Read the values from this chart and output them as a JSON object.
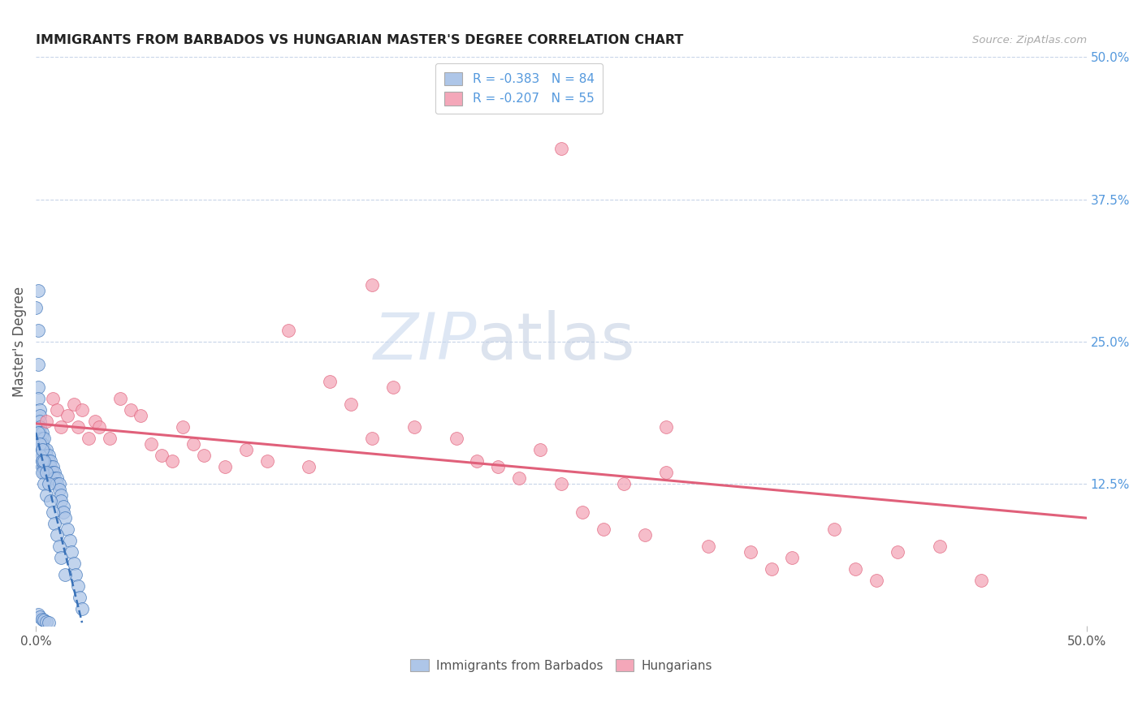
{
  "title": "IMMIGRANTS FROM BARBADOS VS HUNGARIAN MASTER'S DEGREE CORRELATION CHART",
  "source": "Source: ZipAtlas.com",
  "ylabel": "Master's Degree",
  "xlim": [
    0.0,
    0.5
  ],
  "ylim": [
    0.0,
    0.5
  ],
  "legend_label1": "Immigrants from Barbados",
  "legend_label2": "Hungarians",
  "R1": -0.383,
  "N1": 84,
  "R2": -0.207,
  "N2": 55,
  "color_blue": "#aec6e8",
  "color_pink": "#f4a7b9",
  "color_blue_dark": "#3a72b8",
  "color_pink_dark": "#e0607a",
  "watermark_zip": "ZIP",
  "watermark_atlas": "atlas",
  "background_color": "#ffffff",
  "grid_color": "#c8d4e8",
  "title_color": "#222222",
  "axis_label_color": "#555555",
  "right_tick_color": "#5599dd",
  "blue_points_x": [
    0.0,
    0.001,
    0.001,
    0.001,
    0.001,
    0.001,
    0.002,
    0.002,
    0.002,
    0.002,
    0.002,
    0.002,
    0.002,
    0.003,
    0.003,
    0.003,
    0.003,
    0.003,
    0.003,
    0.003,
    0.003,
    0.004,
    0.004,
    0.004,
    0.004,
    0.004,
    0.004,
    0.005,
    0.005,
    0.005,
    0.005,
    0.006,
    0.006,
    0.006,
    0.006,
    0.007,
    0.007,
    0.007,
    0.008,
    0.008,
    0.008,
    0.009,
    0.009,
    0.01,
    0.01,
    0.011,
    0.011,
    0.012,
    0.012,
    0.013,
    0.013,
    0.014,
    0.015,
    0.016,
    0.017,
    0.018,
    0.019,
    0.02,
    0.021,
    0.022,
    0.001,
    0.002,
    0.002,
    0.003,
    0.003,
    0.003,
    0.004,
    0.004,
    0.005,
    0.005,
    0.006,
    0.007,
    0.008,
    0.009,
    0.01,
    0.011,
    0.012,
    0.014,
    0.001,
    0.002,
    0.003,
    0.004,
    0.005,
    0.006
  ],
  "blue_points_y": [
    0.28,
    0.295,
    0.26,
    0.23,
    0.21,
    0.2,
    0.19,
    0.185,
    0.18,
    0.175,
    0.17,
    0.165,
    0.16,
    0.17,
    0.165,
    0.16,
    0.155,
    0.15,
    0.145,
    0.14,
    0.155,
    0.165,
    0.155,
    0.15,
    0.145,
    0.14,
    0.135,
    0.155,
    0.15,
    0.145,
    0.14,
    0.15,
    0.145,
    0.14,
    0.135,
    0.145,
    0.14,
    0.135,
    0.14,
    0.135,
    0.13,
    0.135,
    0.13,
    0.13,
    0.125,
    0.125,
    0.12,
    0.115,
    0.11,
    0.105,
    0.1,
    0.095,
    0.085,
    0.075,
    0.065,
    0.055,
    0.045,
    0.035,
    0.025,
    0.015,
    0.17,
    0.16,
    0.15,
    0.155,
    0.145,
    0.135,
    0.145,
    0.125,
    0.135,
    0.115,
    0.125,
    0.11,
    0.1,
    0.09,
    0.08,
    0.07,
    0.06,
    0.045,
    0.01,
    0.008,
    0.006,
    0.005,
    0.004,
    0.003
  ],
  "pink_points_x": [
    0.005,
    0.008,
    0.01,
    0.012,
    0.015,
    0.018,
    0.02,
    0.022,
    0.025,
    0.028,
    0.03,
    0.035,
    0.04,
    0.045,
    0.05,
    0.055,
    0.06,
    0.065,
    0.07,
    0.075,
    0.08,
    0.09,
    0.1,
    0.11,
    0.12,
    0.13,
    0.14,
    0.15,
    0.16,
    0.17,
    0.18,
    0.2,
    0.21,
    0.22,
    0.23,
    0.24,
    0.25,
    0.26,
    0.27,
    0.28,
    0.29,
    0.3,
    0.32,
    0.34,
    0.35,
    0.36,
    0.38,
    0.39,
    0.4,
    0.41,
    0.16,
    0.25,
    0.3,
    0.43,
    0.45
  ],
  "pink_points_y": [
    0.18,
    0.2,
    0.19,
    0.175,
    0.185,
    0.195,
    0.175,
    0.19,
    0.165,
    0.18,
    0.175,
    0.165,
    0.2,
    0.19,
    0.185,
    0.16,
    0.15,
    0.145,
    0.175,
    0.16,
    0.15,
    0.14,
    0.155,
    0.145,
    0.26,
    0.14,
    0.215,
    0.195,
    0.165,
    0.21,
    0.175,
    0.165,
    0.145,
    0.14,
    0.13,
    0.155,
    0.125,
    0.1,
    0.085,
    0.125,
    0.08,
    0.135,
    0.07,
    0.065,
    0.05,
    0.06,
    0.085,
    0.05,
    0.04,
    0.065,
    0.3,
    0.42,
    0.175,
    0.07,
    0.04
  ],
  "pink_trendline_x": [
    0.0,
    0.5
  ],
  "pink_trendline_y": [
    0.178,
    0.095
  ],
  "blue_trendline_x": [
    0.0,
    0.022
  ],
  "blue_trendline_y": [
    0.17,
    0.003
  ]
}
